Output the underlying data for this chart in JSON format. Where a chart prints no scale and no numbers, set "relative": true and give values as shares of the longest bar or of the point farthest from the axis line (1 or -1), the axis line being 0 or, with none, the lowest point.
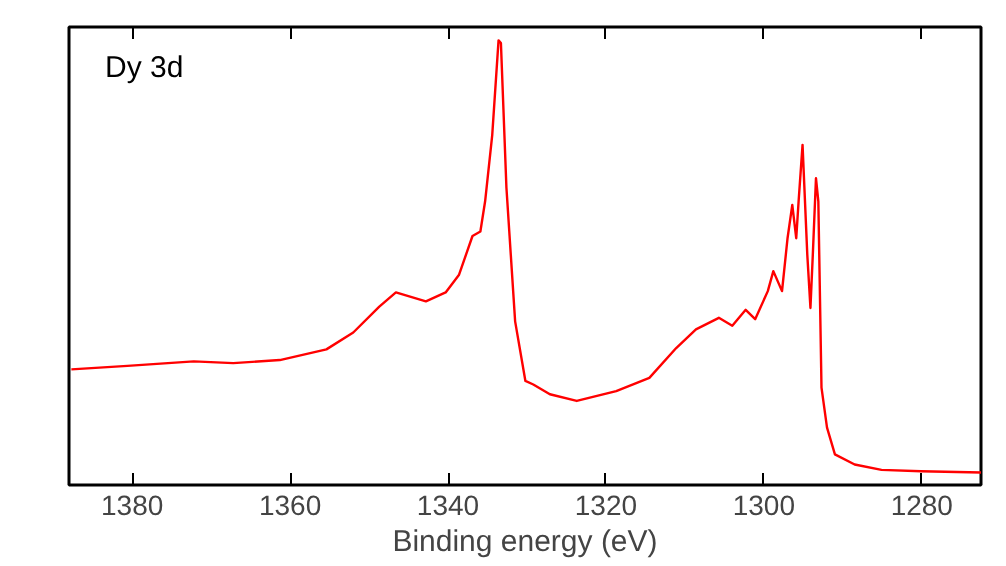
{
  "chart_data": {
    "type": "line",
    "relative": true,
    "xlabel": "Binding energy (eV)",
    "annotations": [
      "Dy 3d"
    ],
    "xlim": [
      1388,
      1272.5
    ],
    "xticks": [
      1380,
      1360,
      1340,
      1320,
      1300,
      1280
    ],
    "line_style": "solid",
    "series": [
      {
        "color": "#ff0000",
        "x": [
          1387.7,
          1380.6,
          1372.2,
          1367.2,
          1361.3,
          1355.4,
          1352.0,
          1348.7,
          1346.6,
          1342.8,
          1340.3,
          1338.6,
          1336.9,
          1335.9,
          1335.3,
          1334.4,
          1333.6,
          1333.3,
          1332.6,
          1331.5,
          1330.2,
          1329.2,
          1327.1,
          1323.7,
          1318.7,
          1314.5,
          1311.1,
          1308.6,
          1305.7,
          1304.0,
          1302.3,
          1301.1,
          1299.5,
          1298.8,
          1297.7,
          1297.0,
          1296.4,
          1295.9,
          1295.6,
          1295.1,
          1294.5,
          1294.1,
          1293.8,
          1293.4,
          1293.1,
          1292.7,
          1292.0,
          1291.0,
          1288.5,
          1285.1,
          1280.1,
          1272.5
        ],
        "values": [
          0.26,
          0.268,
          0.278,
          0.274,
          0.281,
          0.305,
          0.343,
          0.401,
          0.433,
          0.413,
          0.433,
          0.473,
          0.56,
          0.57,
          0.638,
          0.787,
          1.0,
          0.994,
          0.668,
          0.368,
          0.234,
          0.226,
          0.204,
          0.189,
          0.211,
          0.241,
          0.308,
          0.35,
          0.376,
          0.358,
          0.394,
          0.373,
          0.436,
          0.481,
          0.436,
          0.555,
          0.63,
          0.555,
          0.638,
          0.765,
          0.518,
          0.398,
          0.518,
          0.69,
          0.638,
          0.219,
          0.129,
          0.069,
          0.046,
          0.034,
          0.031,
          0.028
        ]
      }
    ]
  }
}
